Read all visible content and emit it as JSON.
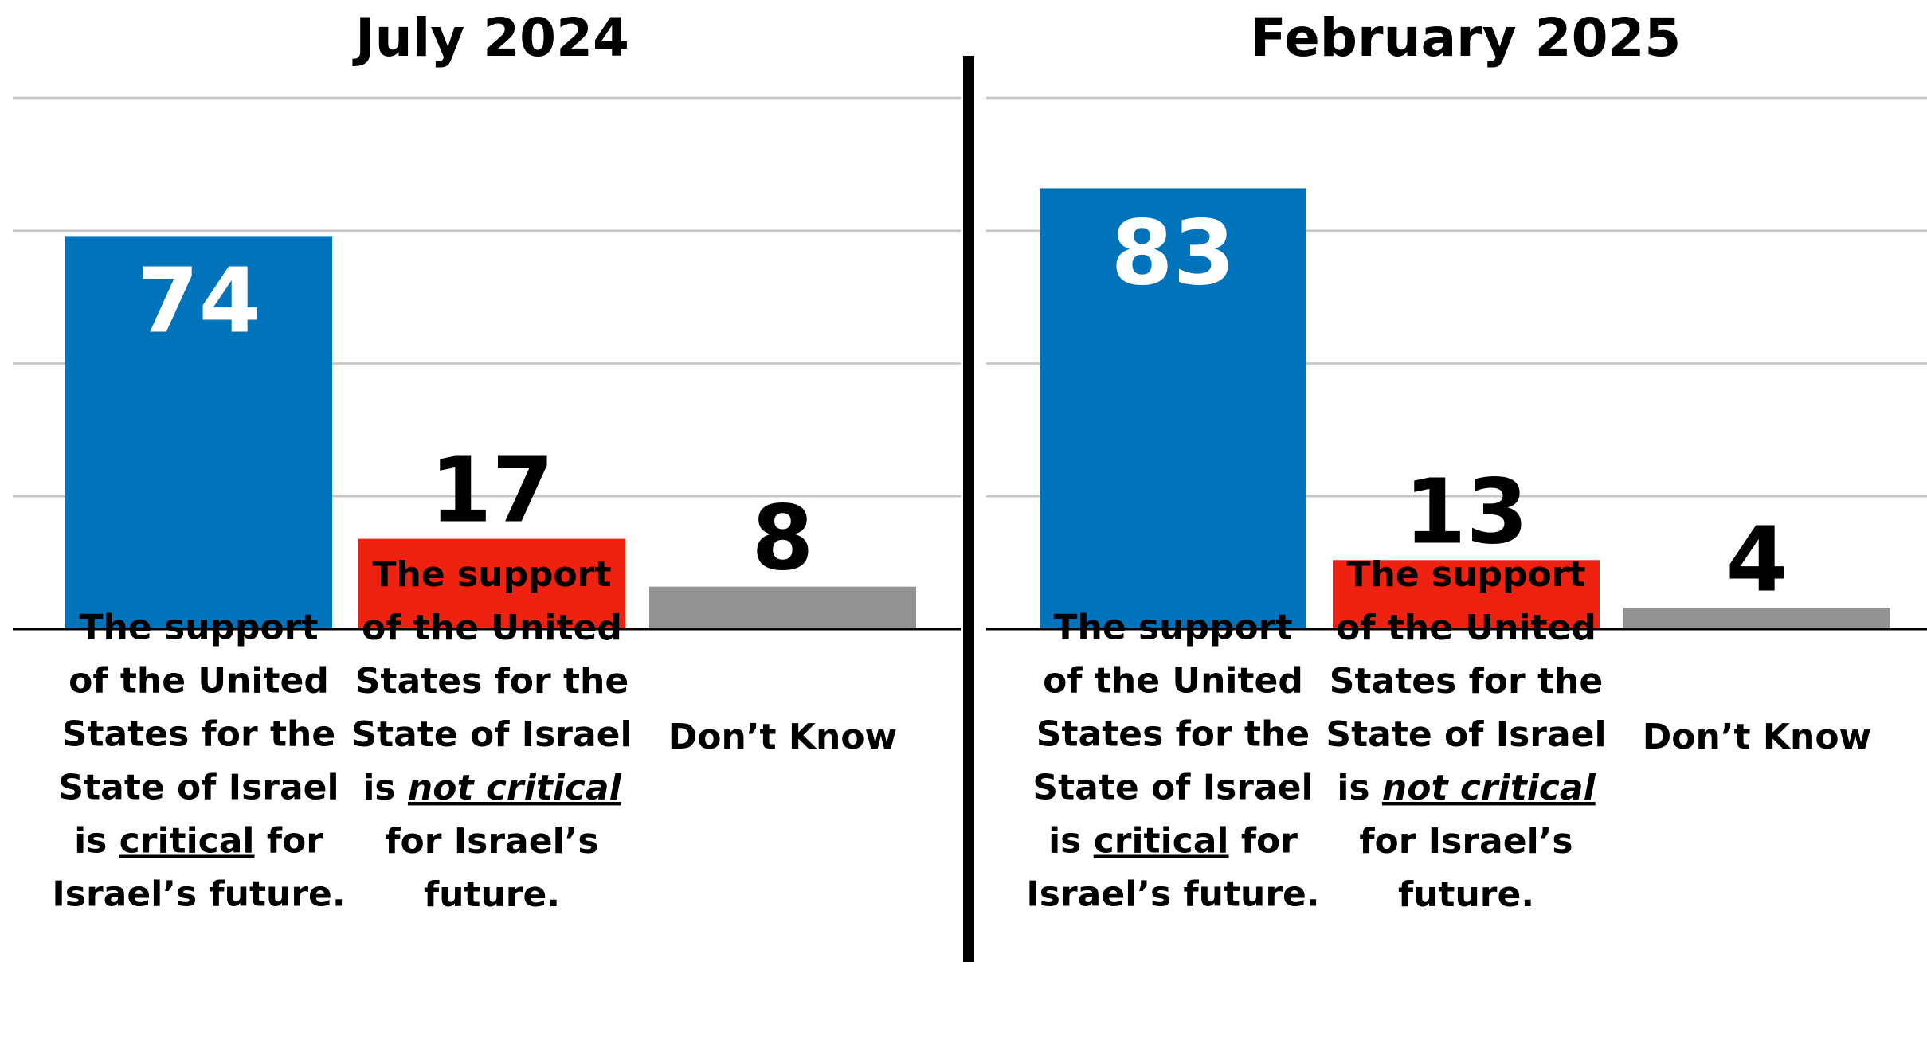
{
  "colors": {
    "critical": "#0073bb",
    "not_critical": "#ee2211",
    "dont_know": "#939393",
    "value_on_bar": "#ffffff",
    "value_above_bar": "#000000"
  },
  "chart_data": [
    {
      "type": "bar",
      "title": "July 2024",
      "categories": [
        "The support of the United States for the State of Israel is critical for Israel's future.",
        "The support of the United States for the State of Israel is not critical for Israel's future.",
        "Don't Know"
      ],
      "values": [
        74,
        17,
        8
      ],
      "colors": [
        "#0073bb",
        "#ee2211",
        "#939393"
      ],
      "ylim": [
        0,
        100
      ],
      "grid": true,
      "category_label_lines": [
        [
          [
            {
              "t": "The support"
            }
          ],
          [
            {
              "t": "of the United"
            }
          ],
          [
            {
              "t": "States for the"
            }
          ],
          [
            {
              "t": "State of Israel"
            }
          ],
          [
            {
              "t": "is "
            },
            {
              "t": "critical",
              "u": true
            },
            {
              "t": " for"
            }
          ],
          [
            {
              "t": "Israel’s future."
            }
          ]
        ],
        [
          [
            {
              "t": "The support"
            }
          ],
          [
            {
              "t": "of the United"
            }
          ],
          [
            {
              "t": "States for the"
            }
          ],
          [
            {
              "t": "State of Israel"
            }
          ],
          [
            {
              "t": "is "
            },
            {
              "t": "not critical",
              "u": true,
              "i": true
            }
          ],
          [
            {
              "t": "for Israel’s"
            }
          ],
          [
            {
              "t": "future."
            }
          ]
        ],
        [
          [
            {
              "t": "Don’t Know"
            }
          ]
        ]
      ]
    },
    {
      "type": "bar",
      "title": "February 2025",
      "categories": [
        "The support of the United States for the State of Israel is critical for Israel's future.",
        "The support of the United States for the State of Israel is not critical for Israel's future.",
        "Don't Know"
      ],
      "values": [
        83,
        13,
        4
      ],
      "colors": [
        "#0073bb",
        "#ee2211",
        "#939393"
      ],
      "ylim": [
        0,
        100
      ],
      "grid": true,
      "category_label_lines": [
        [
          [
            {
              "t": "The support"
            }
          ],
          [
            {
              "t": "of the United"
            }
          ],
          [
            {
              "t": "States for the"
            }
          ],
          [
            {
              "t": "State of Israel"
            }
          ],
          [
            {
              "t": "is "
            },
            {
              "t": "critical",
              "u": true
            },
            {
              "t": " for"
            }
          ],
          [
            {
              "t": "Israel’s future."
            }
          ]
        ],
        [
          [
            {
              "t": "The support"
            }
          ],
          [
            {
              "t": "of the United"
            }
          ],
          [
            {
              "t": "States for the"
            }
          ],
          [
            {
              "t": "State of Israel"
            }
          ],
          [
            {
              "t": "is "
            },
            {
              "t": "not critical",
              "u": true,
              "i": true
            }
          ],
          [
            {
              "t": "for Israel’s"
            }
          ],
          [
            {
              "t": "future."
            }
          ]
        ],
        [
          [
            {
              "t": "Don’t Know"
            }
          ]
        ]
      ]
    }
  ]
}
